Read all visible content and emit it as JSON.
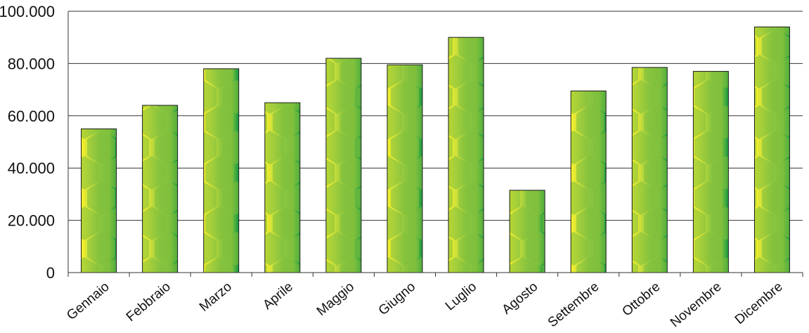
{
  "chart_data": {
    "type": "bar",
    "title": "",
    "xlabel": "",
    "ylabel": "",
    "categories": [
      "Gennaio",
      "Febbraio",
      "Marzo",
      "Aprile",
      "Maggio",
      "Giugno",
      "Luglio",
      "Agosto",
      "Settembre",
      "Ottobre",
      "Novembre",
      "Dicembre"
    ],
    "values": [
      55000,
      64000,
      78000,
      65000,
      82000,
      79500,
      90000,
      31500,
      69500,
      78500,
      77000,
      94000
    ],
    "ylim": [
      0,
      100000
    ],
    "yticks": [
      0,
      20000,
      40000,
      60000,
      80000,
      100000
    ],
    "ytick_labels": [
      "0",
      "20.000",
      "40.000",
      "60.000",
      "80.000",
      "100.000"
    ],
    "grid": "horizontal",
    "legend": "none",
    "colors": {
      "bar_fill": "#8cc63f",
      "bar_highlight": "#ffee33",
      "bar_shadow": "#1b9a3c",
      "bar_outline": "#1a1a1a",
      "gridline": "#333333",
      "axis": "#333333"
    }
  }
}
